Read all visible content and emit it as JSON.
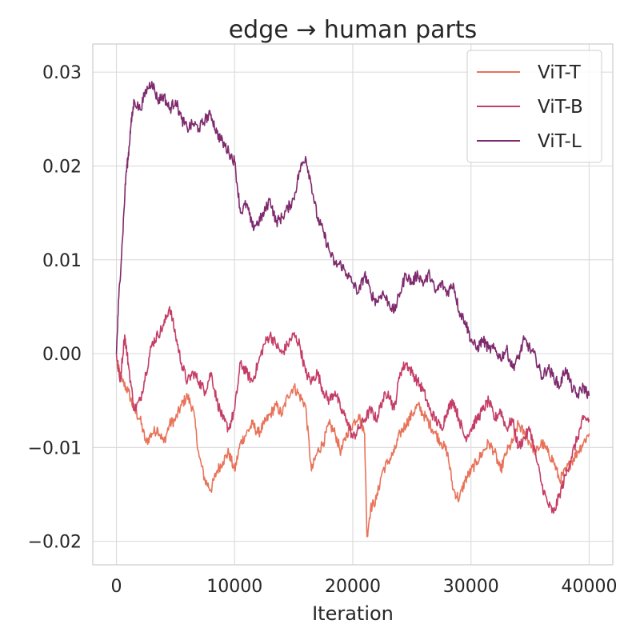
{
  "chart_data": {
    "type": "line",
    "title": "edge → human parts",
    "xlabel": "Iteration",
    "ylabel": "",
    "xlim": [
      -2000,
      42000
    ],
    "ylim": [
      -0.0225,
      0.033
    ],
    "xticks": [
      0,
      10000,
      20000,
      30000,
      40000
    ],
    "xtick_labels": [
      "0",
      "10000",
      "20000",
      "30000",
      "40000"
    ],
    "yticks": [
      -0.02,
      -0.01,
      0.0,
      0.01,
      0.02,
      0.03
    ],
    "ytick_labels": [
      "−0.02",
      "−0.01",
      "0.00",
      "0.01",
      "0.02",
      "0.03"
    ],
    "grid": true,
    "legend_position": "top-right",
    "series": [
      {
        "name": "ViT-T",
        "color": "#e8735a",
        "x": [
          0,
          500,
          1000,
          1500,
          2000,
          2500,
          3000,
          3500,
          4000,
          4500,
          5000,
          5500,
          6000,
          6500,
          7000,
          7500,
          8000,
          8500,
          9000,
          9500,
          10000,
          10500,
          11000,
          11500,
          12000,
          12500,
          13000,
          13500,
          14000,
          14500,
          15000,
          15500,
          16000,
          16500,
          17000,
          17500,
          18000,
          18500,
          19000,
          19500,
          20000,
          20500,
          21000,
          21200,
          21500,
          22000,
          22500,
          23000,
          23500,
          24000,
          24500,
          25000,
          25500,
          26000,
          26500,
          27000,
          27500,
          28000,
          28500,
          29000,
          29500,
          30000,
          30500,
          31000,
          31500,
          32000,
          32500,
          33000,
          33500,
          34000,
          34500,
          35000,
          35500,
          36000,
          36500,
          37000,
          37500,
          38000,
          38500,
          39000,
          39500,
          40000
        ],
        "y": [
          -0.001,
          -0.003,
          -0.004,
          -0.006,
          -0.007,
          -0.0095,
          -0.0085,
          -0.008,
          -0.0095,
          -0.0075,
          -0.007,
          -0.0055,
          -0.0045,
          -0.006,
          -0.011,
          -0.0135,
          -0.0145,
          -0.0125,
          -0.0115,
          -0.0105,
          -0.0125,
          -0.0095,
          -0.0085,
          -0.0075,
          -0.0085,
          -0.0075,
          -0.0065,
          -0.0055,
          -0.0065,
          -0.0045,
          -0.0035,
          -0.0045,
          -0.0055,
          -0.0125,
          -0.0105,
          -0.0095,
          -0.0075,
          -0.0085,
          -0.0105,
          -0.0085,
          -0.0075,
          -0.0065,
          -0.0085,
          -0.0195,
          -0.0165,
          -0.0155,
          -0.0125,
          -0.0115,
          -0.0105,
          -0.0085,
          -0.0075,
          -0.0065,
          -0.0055,
          -0.0065,
          -0.0075,
          -0.0085,
          -0.0095,
          -0.0105,
          -0.0145,
          -0.0155,
          -0.0135,
          -0.0125,
          -0.0115,
          -0.0105,
          -0.0095,
          -0.0105,
          -0.0125,
          -0.0105,
          -0.0095,
          -0.0075,
          -0.0085,
          -0.0095,
          -0.0105,
          -0.0095,
          -0.0105,
          -0.0115,
          -0.0135,
          -0.0125,
          -0.0115,
          -0.0105,
          -0.0095,
          -0.0085
        ]
      },
      {
        "name": "ViT-B",
        "color": "#c53d66",
        "x": [
          0,
          300,
          700,
          1000,
          1500,
          2000,
          2500,
          3000,
          3500,
          4000,
          4500,
          5000,
          5500,
          6000,
          6500,
          7000,
          7500,
          8000,
          8500,
          9000,
          9500,
          10000,
          10500,
          11000,
          11500,
          12000,
          12500,
          13000,
          13500,
          14000,
          14500,
          15000,
          15500,
          16000,
          16500,
          17000,
          17500,
          18000,
          18500,
          19000,
          19500,
          20000,
          20500,
          21000,
          21500,
          22000,
          22500,
          23000,
          23500,
          24000,
          24500,
          25000,
          25500,
          26000,
          26500,
          27000,
          27500,
          28000,
          28500,
          29000,
          29500,
          30000,
          30500,
          31000,
          31500,
          32000,
          32500,
          33000,
          33500,
          34000,
          34500,
          35000,
          35500,
          36000,
          36500,
          37000,
          37500,
          38000,
          38500,
          39000,
          39500,
          40000
        ],
        "y": [
          0.0,
          -0.003,
          0.002,
          -0.001,
          -0.006,
          -0.005,
          -0.002,
          0.001,
          0.002,
          0.003,
          0.005,
          0.002,
          -0.001,
          -0.003,
          -0.002,
          -0.003,
          -0.004,
          -0.002,
          -0.005,
          -0.007,
          -0.008,
          -0.006,
          -0.001,
          -0.002,
          -0.003,
          -0.001,
          0.001,
          0.002,
          0.001,
          0.0,
          0.001,
          0.002,
          0.001,
          -0.002,
          -0.003,
          -0.002,
          -0.004,
          -0.005,
          -0.004,
          -0.006,
          -0.007,
          -0.009,
          -0.008,
          -0.007,
          -0.006,
          -0.007,
          -0.005,
          -0.004,
          -0.006,
          -0.002,
          -0.001,
          -0.002,
          -0.003,
          -0.004,
          -0.006,
          -0.007,
          -0.008,
          -0.006,
          -0.005,
          -0.007,
          -0.009,
          -0.008,
          -0.007,
          -0.006,
          -0.005,
          -0.007,
          -0.006,
          -0.008,
          -0.007,
          -0.01,
          -0.009,
          -0.008,
          -0.011,
          -0.014,
          -0.016,
          -0.017,
          -0.015,
          -0.013,
          -0.011,
          -0.009,
          -0.007,
          -0.007
        ]
      },
      {
        "name": "ViT-L",
        "color": "#7e2a6d",
        "x": [
          0,
          200,
          500,
          800,
          1000,
          1200,
          1500,
          2000,
          2500,
          3000,
          3500,
          4000,
          4500,
          5000,
          5500,
          6000,
          6500,
          7000,
          7500,
          8000,
          8500,
          9000,
          9500,
          10000,
          10500,
          11000,
          11500,
          12000,
          12500,
          13000,
          13500,
          14000,
          14500,
          15000,
          15500,
          16000,
          16500,
          17000,
          17500,
          18000,
          18500,
          19000,
          19500,
          20000,
          20500,
          21000,
          21500,
          22000,
          22500,
          23000,
          23500,
          24000,
          24500,
          25000,
          25500,
          26000,
          26500,
          27000,
          27500,
          28000,
          28500,
          29000,
          29500,
          30000,
          30500,
          31000,
          31500,
          32000,
          32500,
          33000,
          33500,
          34000,
          34500,
          35000,
          35500,
          36000,
          36500,
          37000,
          37500,
          38000,
          38500,
          39000,
          39500,
          40000
        ],
        "y": [
          0.0,
          0.006,
          0.012,
          0.019,
          0.021,
          0.024,
          0.027,
          0.026,
          0.028,
          0.029,
          0.027,
          0.0275,
          0.026,
          0.027,
          0.025,
          0.024,
          0.0245,
          0.024,
          0.025,
          0.0255,
          0.0235,
          0.0225,
          0.0215,
          0.0205,
          0.015,
          0.016,
          0.0135,
          0.014,
          0.015,
          0.0165,
          0.014,
          0.0145,
          0.0155,
          0.0165,
          0.0195,
          0.021,
          0.018,
          0.0145,
          0.013,
          0.011,
          0.0095,
          0.0095,
          0.0085,
          0.0075,
          0.0065,
          0.0085,
          0.0065,
          0.0055,
          0.0065,
          0.0055,
          0.0045,
          0.0065,
          0.0085,
          0.0075,
          0.0085,
          0.0075,
          0.0085,
          0.0065,
          0.0075,
          0.0065,
          0.0075,
          0.0045,
          0.0035,
          0.0015,
          0.0005,
          0.0015,
          0.0005,
          0.0005,
          -0.0005,
          0.0005,
          -0.0015,
          -0.0005,
          0.0015,
          0.0005,
          -0.0005,
          -0.0025,
          -0.0015,
          -0.0025,
          -0.0035,
          -0.0015,
          -0.0035,
          -0.0045,
          -0.0035,
          -0.0045
        ]
      }
    ]
  }
}
